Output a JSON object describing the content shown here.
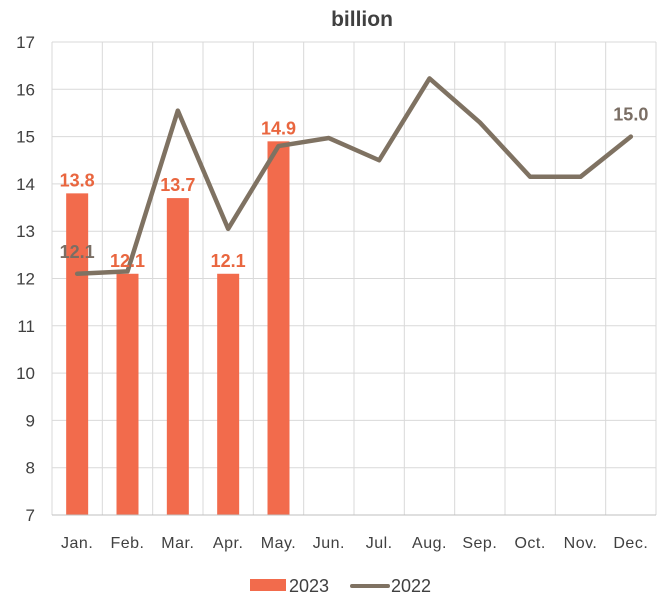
{
  "chart_data": {
    "type": "bar",
    "title": "billion",
    "categories": [
      "Jan.",
      "Feb.",
      "Mar.",
      "Apr.",
      "May.",
      "Jun.",
      "Jul.",
      "Aug.",
      "Sep.",
      "Oct.",
      "Nov.",
      "Dec."
    ],
    "series": [
      {
        "name": "2023",
        "type": "bar",
        "color": "#F26B4C",
        "values": [
          13.8,
          12.1,
          13.7,
          12.1,
          14.9,
          null,
          null,
          null,
          null,
          null,
          null,
          null
        ],
        "labels": [
          "13.8",
          "12.1",
          "13.7",
          "12.1",
          "14.9"
        ]
      },
      {
        "name": "2022",
        "type": "line",
        "color": "#7F7262",
        "values": [
          12.1,
          12.15,
          15.55,
          13.05,
          14.8,
          14.97,
          14.5,
          16.23,
          15.3,
          14.15,
          14.15,
          15.0
        ],
        "labels": {
          "0": "12.1",
          "11": "15.0"
        }
      }
    ],
    "ylim": [
      7,
      17
    ],
    "yticks": [
      7,
      8,
      9,
      10,
      11,
      12,
      13,
      14,
      15,
      16,
      17
    ],
    "grid": true,
    "legend": "bottom",
    "xlabel": "",
    "ylabel": ""
  }
}
